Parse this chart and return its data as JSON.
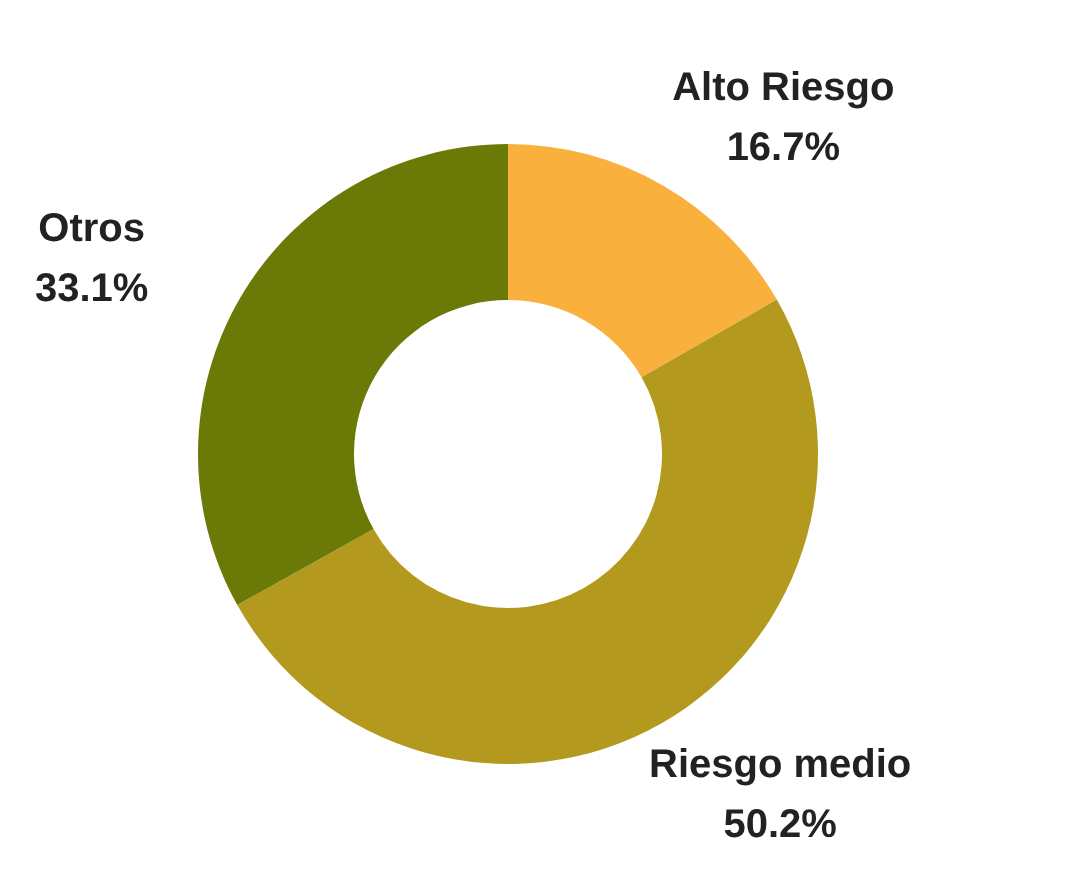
{
  "chart_data": {
    "type": "donut",
    "categories": [
      "Alto Riesgo",
      "Riesgo medio",
      "Otros"
    ],
    "values": [
      16.7,
      50.2,
      33.1
    ],
    "value_labels": [
      "16.7%",
      "50.2%",
      "33.1%"
    ],
    "colors": [
      "#f9b03d",
      "#b39a1f",
      "#6b7a06"
    ]
  }
}
